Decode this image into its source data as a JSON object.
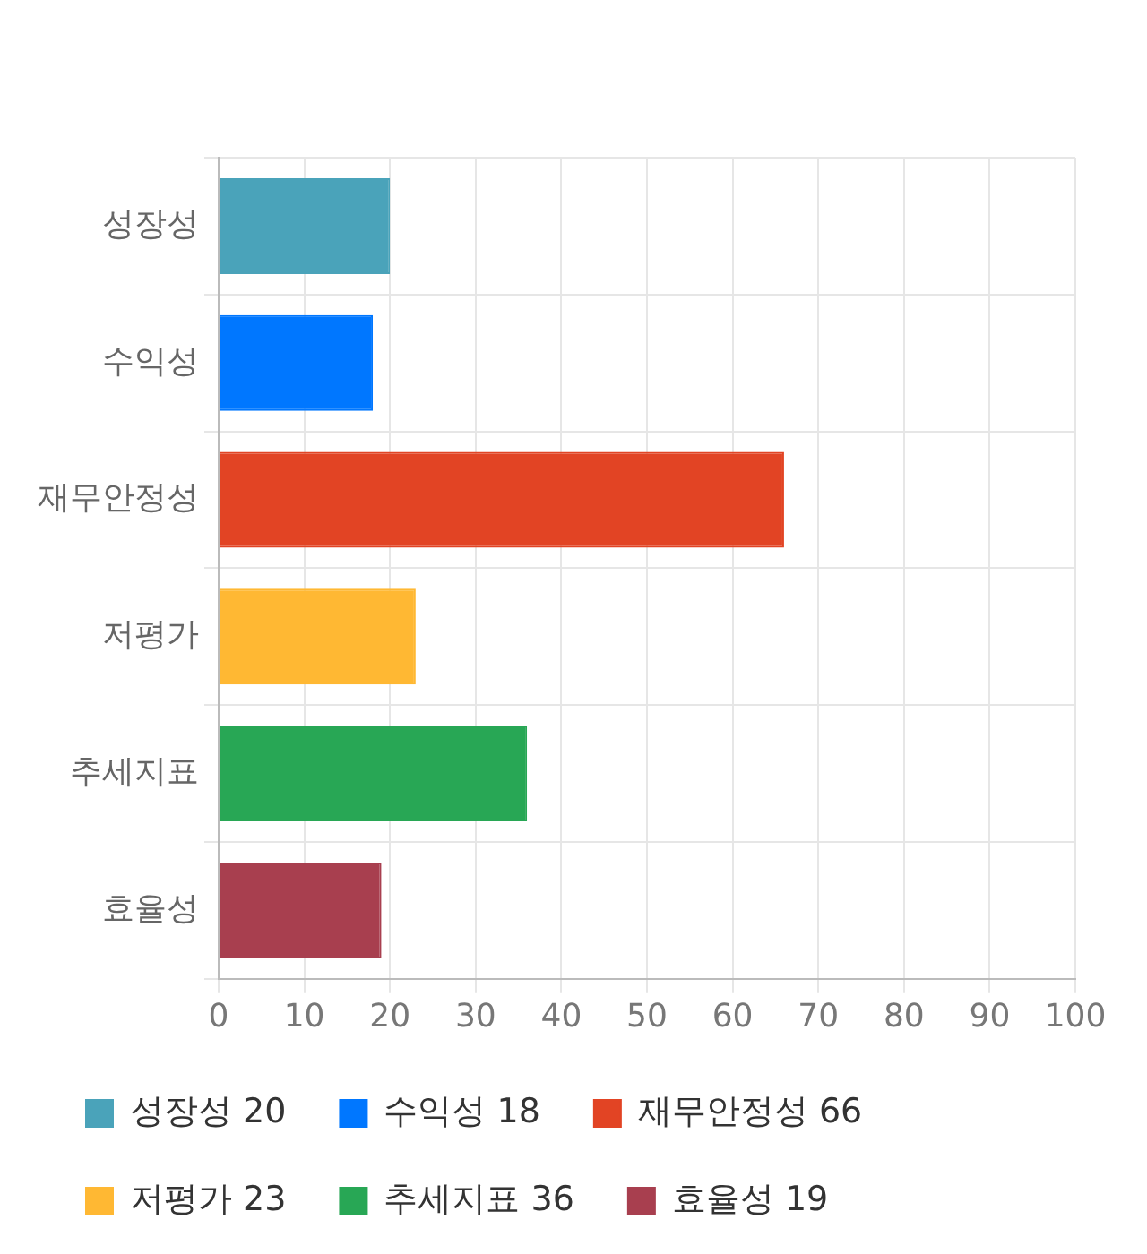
{
  "chart_data": {
    "type": "bar",
    "orientation": "horizontal",
    "categories": [
      "성장성",
      "수익성",
      "재무안정성",
      "저평가",
      "추세지표",
      "효율성"
    ],
    "series": [
      {
        "name": "성장성 20",
        "color": "#4aa3ba",
        "values": [
          20,
          null,
          null,
          null,
          null,
          null
        ]
      },
      {
        "name": "수익성 18",
        "color": "#0077ff",
        "values": [
          null,
          18,
          null,
          null,
          null,
          null
        ]
      },
      {
        "name": "재무안정성 66",
        "color": "#e24424",
        "values": [
          null,
          null,
          66,
          null,
          null,
          null
        ]
      },
      {
        "name": "저평가 23",
        "color": "#ffb833",
        "values": [
          null,
          null,
          null,
          23,
          null,
          null
        ]
      },
      {
        "name": "추세지표 36",
        "color": "#28a755",
        "values": [
          null,
          null,
          null,
          null,
          36,
          null
        ]
      },
      {
        "name": "효율성 19",
        "color": "#a83f4f",
        "values": [
          null,
          null,
          null,
          null,
          null,
          19
        ]
      }
    ],
    "xlim": [
      0,
      100
    ],
    "xticks": [
      0,
      10,
      20,
      30,
      40,
      50,
      60,
      70,
      80,
      90,
      100
    ],
    "grid": true,
    "legend": "bottom"
  }
}
